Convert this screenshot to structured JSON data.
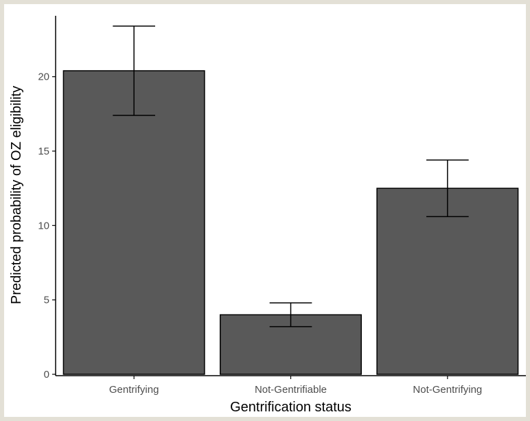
{
  "chart_data": {
    "type": "bar",
    "title": "",
    "xlabel": "Gentrification status",
    "ylabel": "Predicted probability of OZ eligibility",
    "categories": [
      "Gentrifying",
      "Not-Gentrifiable",
      "Not-Gentrifying"
    ],
    "values": [
      20.4,
      4.0,
      12.5
    ],
    "error_low": [
      17.4,
      3.2,
      10.6
    ],
    "error_high": [
      23.4,
      4.8,
      14.4
    ],
    "ylim": [
      0,
      24.6
    ],
    "yticks": [
      0,
      5,
      10,
      15,
      20
    ],
    "ytick_labels": [
      "0",
      "5",
      "10",
      "15",
      "20"
    ],
    "grid": false,
    "legend": "none",
    "colors": {
      "bar_fill": "#595959",
      "bar_stroke": "#000000",
      "axis": "#000000",
      "tick_label": "#4d4d4d",
      "background": "#ffffff",
      "frame": "#e3e0d6"
    }
  }
}
